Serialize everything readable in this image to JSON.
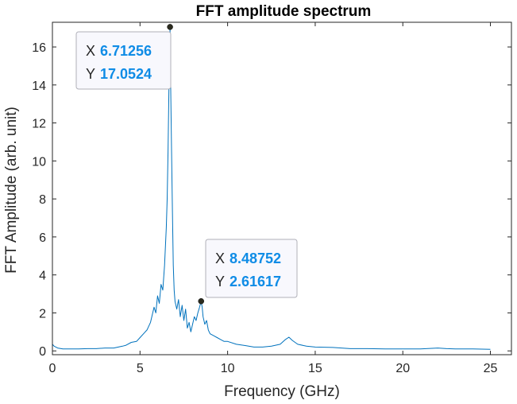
{
  "chart_data": {
    "type": "line",
    "title": "FFT amplitude spectrum",
    "xlabel": "Frequency (GHz)",
    "ylabel": "FFT Amplitude (arb. unit)",
    "xlim": [
      0,
      26.2
    ],
    "ylim": [
      -0.2,
      17.3
    ],
    "xticks": [
      0,
      5,
      10,
      15,
      20,
      25
    ],
    "yticks": [
      0,
      2,
      4,
      6,
      8,
      10,
      12,
      14,
      16
    ],
    "grid": false,
    "line_color": "#0072BD",
    "series": [
      {
        "x": [
          0,
          0.1,
          0.3,
          0.6,
          1,
          1.5,
          2,
          2.5,
          3,
          3.5,
          4,
          4.2,
          4.5,
          4.8,
          5,
          5.2,
          5.4,
          5.6,
          5.8,
          5.9,
          6.0,
          6.1,
          6.2,
          6.3,
          6.4,
          6.5,
          6.55,
          6.6,
          6.65,
          6.7,
          6.71256,
          6.75,
          6.8,
          6.85,
          6.9,
          6.95,
          7.0,
          7.1,
          7.2,
          7.3,
          7.4,
          7.5,
          7.6,
          7.7,
          7.8,
          7.9,
          8.0,
          8.1,
          8.2,
          8.3,
          8.4,
          8.48752,
          8.55,
          8.6,
          8.7,
          8.8,
          8.9,
          9.0,
          9.2,
          9.4,
          9.6,
          9.8,
          10.0,
          10.5,
          11,
          11.5,
          12,
          12.5,
          13,
          13.3,
          13.5,
          13.7,
          14,
          14.5,
          15,
          16,
          17,
          18,
          19,
          20,
          21,
          22,
          22.5,
          23,
          24,
          25
        ],
        "y": [
          0.35,
          0.25,
          0.15,
          0.1,
          0.1,
          0.1,
          0.12,
          0.12,
          0.15,
          0.15,
          0.25,
          0.3,
          0.45,
          0.5,
          0.7,
          0.9,
          1.1,
          1.5,
          2.3,
          2.0,
          2.9,
          2.5,
          3.5,
          3.2,
          4.5,
          6.5,
          8.0,
          10.5,
          13.8,
          15.5,
          17.0524,
          14.0,
          10.6,
          7.4,
          4.5,
          3.2,
          2.6,
          2.2,
          2.7,
          1.8,
          2.4,
          1.6,
          2.2,
          1.2,
          1.5,
          1.0,
          1.4,
          1.8,
          1.6,
          2.0,
          2.3,
          2.61617,
          2.3,
          1.8,
          1.4,
          1.6,
          1.1,
          0.9,
          0.8,
          0.7,
          0.6,
          0.5,
          0.5,
          0.35,
          0.28,
          0.2,
          0.2,
          0.25,
          0.35,
          0.6,
          0.72,
          0.55,
          0.35,
          0.25,
          0.2,
          0.18,
          0.12,
          0.12,
          0.1,
          0.1,
          0.1,
          0.15,
          0.12,
          0.1,
          0.1,
          0.08
        ]
      }
    ],
    "datatips": [
      {
        "x": 6.71256,
        "y": 17.0524,
        "x_label": "X",
        "y_label": "Y",
        "x_text": "6.71256",
        "y_text": "17.0524"
      },
      {
        "x": 8.48752,
        "y": 2.61617,
        "x_label": "X",
        "y_label": "Y",
        "x_text": "8.48752",
        "y_text": "2.61617"
      }
    ],
    "datatip_value_color": "#0F8CE6"
  }
}
